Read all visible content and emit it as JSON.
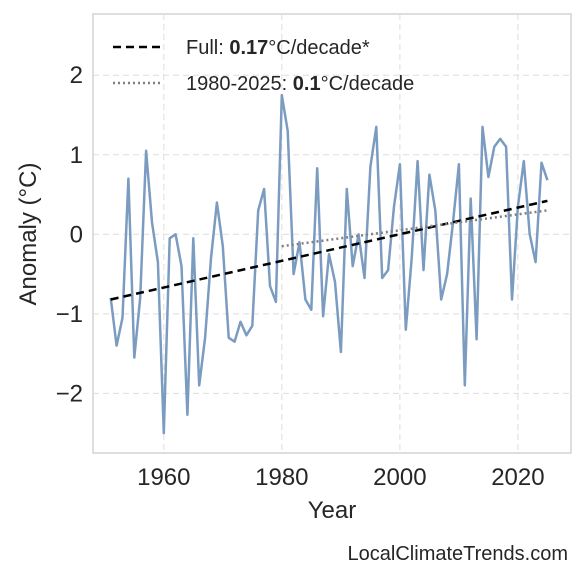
{
  "chart_data": {
    "type": "line",
    "xlabel": "Year",
    "ylabel": "Anomaly (°C)",
    "watermark": "LocalClimateTrends.com",
    "xlim": [
      1948,
      2029
    ],
    "ylim": [
      -2.75,
      2.77
    ],
    "xticks": [
      1960,
      1980,
      2000,
      2020
    ],
    "yticks": [
      {
        "value": -2,
        "label": "−2"
      },
      {
        "value": -1,
        "label": "−1"
      },
      0,
      1,
      2
    ],
    "grid": true,
    "legend": "upper left",
    "series": [
      {
        "color": "#7b9cc0",
        "x": [
          1951,
          1952,
          1953,
          1954,
          1955,
          1956,
          1957,
          1958,
          1959,
          1960,
          1961,
          1962,
          1963,
          1964,
          1965,
          1966,
          1967,
          1968,
          1969,
          1970,
          1971,
          1972,
          1973,
          1974,
          1975,
          1976,
          1977,
          1978,
          1979,
          1980,
          1981,
          1982,
          1983,
          1984,
          1985,
          1986,
          1987,
          1988,
          1989,
          1990,
          1991,
          1992,
          1993,
          1994,
          1995,
          1996,
          1997,
          1998,
          1999,
          2000,
          2001,
          2002,
          2003,
          2004,
          2005,
          2006,
          2007,
          2008,
          2009,
          2010,
          2011,
          2012,
          2013,
          2014,
          2015,
          2016,
          2017,
          2018,
          2019,
          2020,
          2021,
          2022,
          2023,
          2024,
          2025
        ],
        "values": [
          -0.8,
          -1.4,
          -1.05,
          0.7,
          -1.55,
          -0.8,
          1.05,
          0.15,
          -0.35,
          -2.5,
          -0.05,
          0.0,
          -0.4,
          -2.27,
          -0.05,
          -1.9,
          -1.3,
          -0.3,
          0.4,
          -0.15,
          -1.3,
          -1.35,
          -1.1,
          -1.27,
          -1.15,
          0.3,
          0.57,
          -0.65,
          -0.85,
          1.75,
          1.3,
          -0.5,
          -0.1,
          -0.82,
          -0.95,
          0.83,
          -1.03,
          -0.25,
          -0.6,
          -1.48,
          0.57,
          -0.4,
          0.0,
          -0.55,
          0.85,
          1.35,
          -0.55,
          -0.45,
          0.35,
          0.88,
          -1.2,
          -0.3,
          0.92,
          -0.45,
          0.75,
          0.3,
          -0.82,
          -0.5,
          0.15,
          0.88,
          -1.9,
          0.45,
          -1.32,
          1.35,
          0.72,
          1.1,
          1.2,
          1.1,
          -0.82,
          0.35,
          0.92,
          0.0,
          -0.35,
          0.9,
          0.68
        ]
      },
      {
        "name": "Full: 0.17°C/decade*",
        "name_bold": "0.17",
        "color": "#000000",
        "dash": "dashed",
        "x": [
          1951,
          2025
        ],
        "values": [
          -0.82,
          0.42
        ]
      },
      {
        "name": "1980-2025: 0.1°C/decade",
        "name_bold": "0.1",
        "color": "#808080",
        "dash": "dotted",
        "x": [
          1980,
          2025
        ],
        "values": [
          -0.15,
          0.3
        ]
      }
    ]
  }
}
